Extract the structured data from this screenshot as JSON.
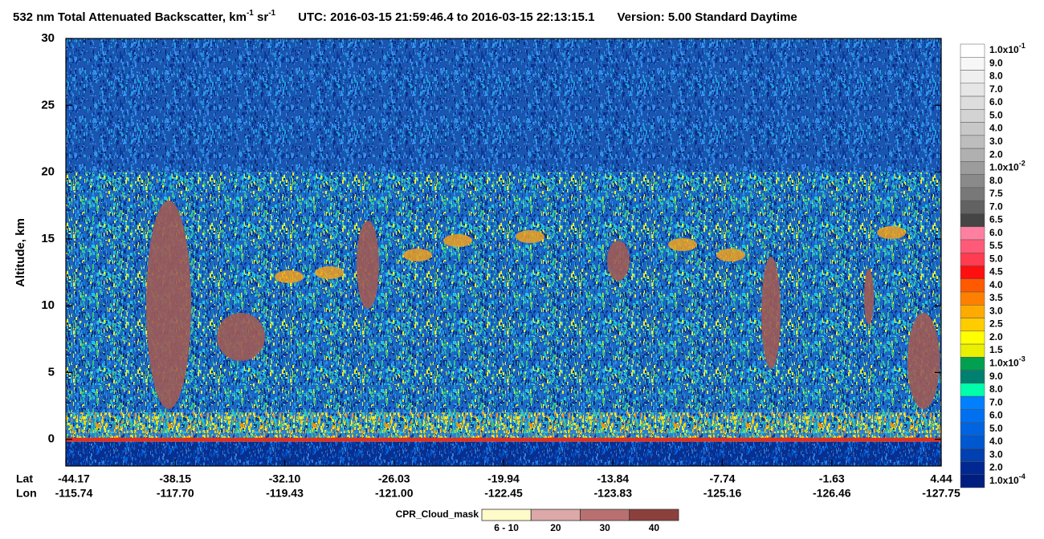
{
  "chart_data": {
    "type": "curtain",
    "title": {
      "quantity": "532 nm Total Attenuated Backscatter, km",
      "exp1": "-1",
      "unit2": " sr",
      "exp2": "-1",
      "utc": "UTC:  2016-03-15 21:59:46.4  to  2016-03-15 22:13:15.1",
      "version": "Version: 5.00  Standard  Daytime"
    },
    "y_label": "Altitude, km",
    "ylim": [
      -2,
      30
    ],
    "yticks": [
      0,
      5,
      10,
      15,
      20,
      25,
      30
    ],
    "x_rows": [
      {
        "label": "Lat",
        "ticks": [
          "-44.17",
          "-38.15",
          "-32.10",
          "-26.03",
          "-19.94",
          "-13.84",
          "-7.74",
          "-1.63",
          "4.44"
        ]
      },
      {
        "label": "Lon",
        "ticks": [
          "-115.74",
          "-117.70",
          "-119.43",
          "-121.00",
          "-122.45",
          "-123.83",
          "-125.16",
          "-126.46",
          "-127.75"
        ]
      }
    ],
    "colorbar": {
      "labels": [
        {
          "text": "1.0x10",
          "sup": "-1"
        },
        {
          "text": "9.0"
        },
        {
          "text": "8.0"
        },
        {
          "text": "7.0"
        },
        {
          "text": "6.0"
        },
        {
          "text": "5.0"
        },
        {
          "text": "4.0"
        },
        {
          "text": "3.0"
        },
        {
          "text": "2.0"
        },
        {
          "text": "1.0x10",
          "sup": "-2"
        },
        {
          "text": "8.0"
        },
        {
          "text": "7.5"
        },
        {
          "text": "7.0"
        },
        {
          "text": "6.5"
        },
        {
          "text": "6.0"
        },
        {
          "text": "5.5"
        },
        {
          "text": "5.0"
        },
        {
          "text": "4.5"
        },
        {
          "text": "4.0"
        },
        {
          "text": "3.5"
        },
        {
          "text": "3.0"
        },
        {
          "text": "2.5"
        },
        {
          "text": "2.0"
        },
        {
          "text": "1.5"
        },
        {
          "text": "1.0x10",
          "sup": "-3"
        },
        {
          "text": "9.0"
        },
        {
          "text": "8.0"
        },
        {
          "text": "7.0"
        },
        {
          "text": "6.0"
        },
        {
          "text": "5.0"
        },
        {
          "text": "4.0"
        },
        {
          "text": "3.0"
        },
        {
          "text": "2.0"
        },
        {
          "text": "1.0x10",
          "sup": "-4"
        }
      ],
      "colors": [
        "#ffffff",
        "#f7f7f7",
        "#efefef",
        "#e6e6e6",
        "#dddddd",
        "#d3d3d3",
        "#c8c8c8",
        "#bdbdbd",
        "#b0b0b0",
        "#9c9c9c",
        "#8a8a8a",
        "#787878",
        "#626262",
        "#454545",
        "#ff7fa0",
        "#ff5a78",
        "#ff3c50",
        "#ff1010",
        "#ff5a00",
        "#ff8000",
        "#ffaa00",
        "#ffcc00",
        "#ffff00",
        "#eaf000",
        "#00a050",
        "#008070",
        "#00ffaa",
        "#0080ff",
        "#0070f0",
        "#0064e0",
        "#0058d0",
        "#0040b0",
        "#002890",
        "#001e80"
      ]
    },
    "cpr_legend": {
      "title": "CPR_Cloud_mask",
      "labels": [
        "6 - 10",
        "20",
        "30",
        "40"
      ],
      "colors": [
        "#fffbc8",
        "#dca8a8",
        "#b87070",
        "#8c403c"
      ]
    }
  }
}
